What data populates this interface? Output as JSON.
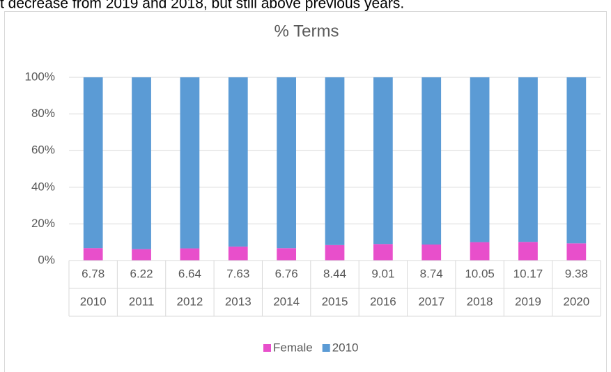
{
  "header_text": "t decrease from 2019 and 2018, but still above previous years.",
  "chart_data": {
    "type": "stacked_bar_100",
    "title": "% Terms",
    "categories": [
      "2010",
      "2011",
      "2012",
      "2013",
      "2014",
      "2015",
      "2016",
      "2017",
      "2018",
      "2019",
      "2020"
    ],
    "series": [
      {
        "name": "Female",
        "color": "#e84fcb",
        "values": [
          6.78,
          6.22,
          6.64,
          7.63,
          6.76,
          8.44,
          9.01,
          8.74,
          10.05,
          10.17,
          9.38
        ]
      },
      {
        "name": "2010",
        "color": "#5b9bd5",
        "values": [
          93.22,
          93.78,
          93.36,
          92.37,
          93.24,
          91.56,
          90.99,
          91.26,
          89.95,
          89.83,
          90.62
        ]
      }
    ],
    "ylim": [
      0,
      100
    ],
    "yticks": [
      {
        "value": 0,
        "label": "0%"
      },
      {
        "value": 20,
        "label": "20%"
      },
      {
        "value": 40,
        "label": "40%"
      },
      {
        "value": 60,
        "label": "60%"
      },
      {
        "value": 80,
        "label": "80%"
      },
      {
        "value": 100,
        "label": "100%"
      }
    ],
    "grid": true,
    "legend": "bottom",
    "data_table": true
  }
}
